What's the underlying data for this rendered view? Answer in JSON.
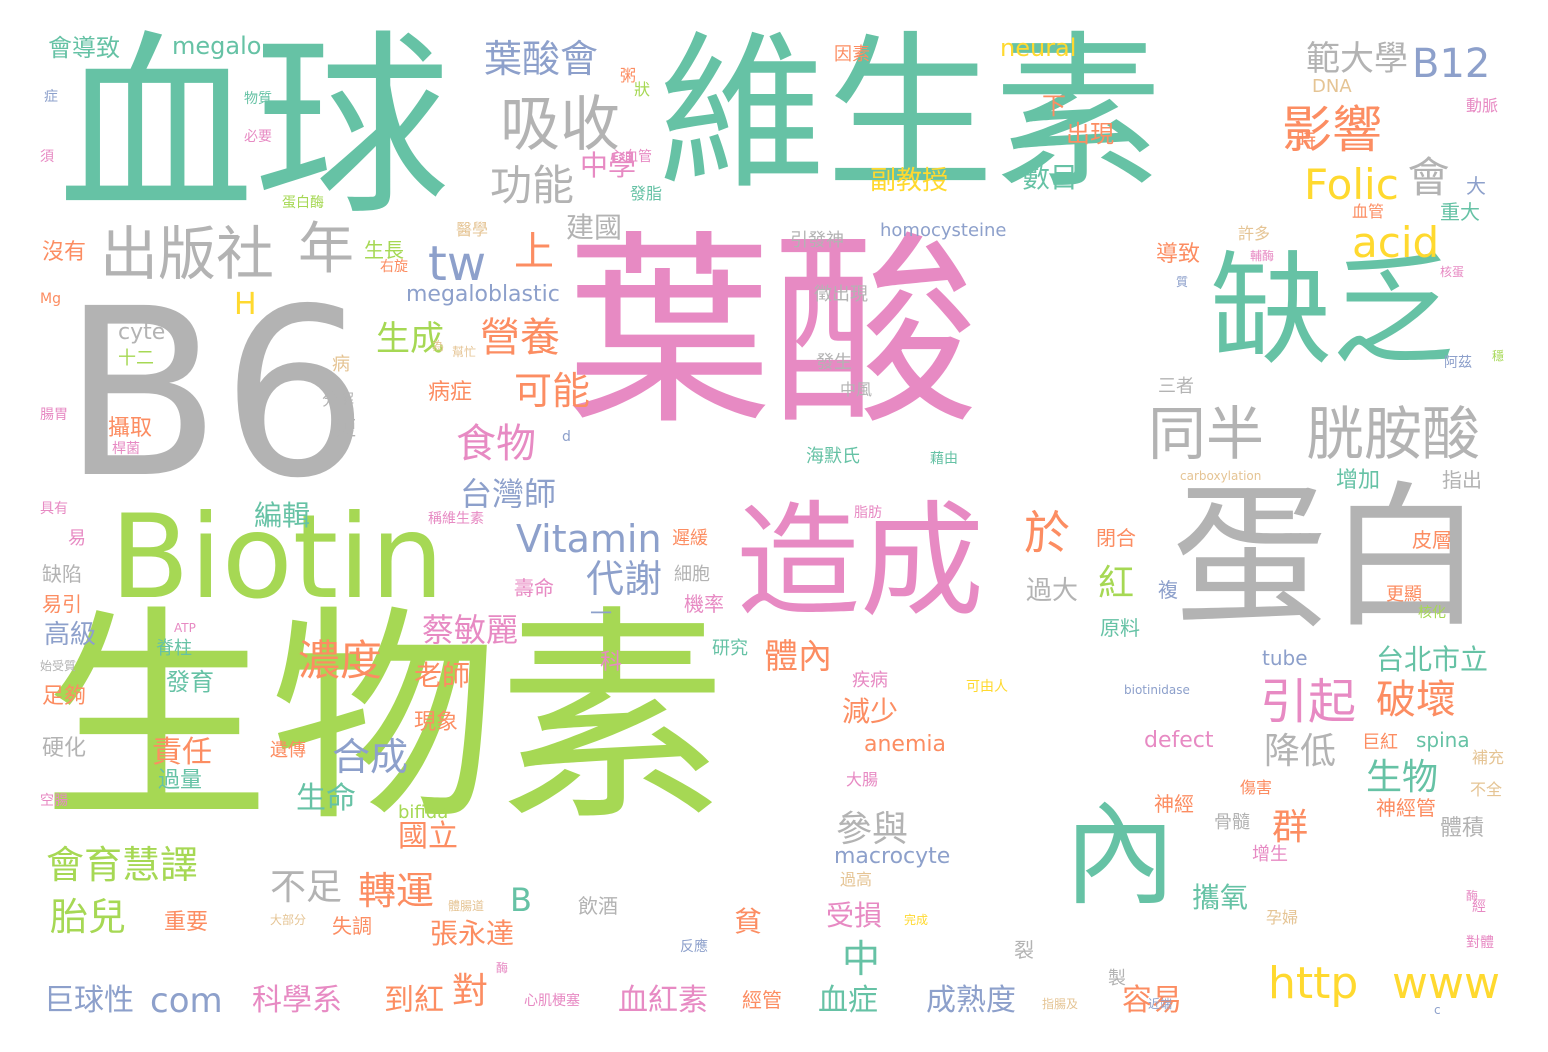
{
  "colors": {
    "teal": "#66c2a5",
    "green": "#a6d854",
    "pink": "#e78ac3",
    "gray": "#b3b3b3",
    "orange": "#fc8d62",
    "blue": "#8da0cb",
    "yellow": "#ffd92f",
    "tan": "#e5c494"
  },
  "words": [
    {
      "text": "生物素",
      "color": "green"
    },
    {
      "text": "葉酸",
      "color": "pink"
    },
    {
      "text": "維生素",
      "color": "teal"
    },
    {
      "text": "血球",
      "color": "teal"
    },
    {
      "text": "B6",
      "color": "gray"
    },
    {
      "text": "Biotin",
      "color": "green"
    },
    {
      "text": "缺乏",
      "color": "teal"
    },
    {
      "text": "蛋白",
      "color": "gray"
    },
    {
      "text": "造成",
      "color": "pink"
    },
    {
      "text": "內",
      "color": "teal"
    },
    {
      "text": "吸收",
      "color": "gray"
    },
    {
      "text": "出版社",
      "color": "gray"
    },
    {
      "text": "年",
      "color": "gray"
    },
    {
      "text": "同半",
      "color": "gray"
    },
    {
      "text": "胱胺酸",
      "color": "gray"
    },
    {
      "text": "葉酸會",
      "color": "blue"
    },
    {
      "text": "影響",
      "color": "orange"
    },
    {
      "text": "功能",
      "color": "gray"
    },
    {
      "text": "tw",
      "color": "blue"
    },
    {
      "text": "上",
      "color": "orange"
    },
    {
      "text": "Folic",
      "color": "yellow"
    },
    {
      "text": "acid",
      "color": "yellow"
    },
    {
      "text": "會",
      "color": "gray"
    },
    {
      "text": "範大學",
      "color": "gray"
    },
    {
      "text": "B12",
      "color": "blue"
    },
    {
      "text": "營養",
      "color": "orange"
    },
    {
      "text": "生成",
      "color": "green"
    },
    {
      "text": "可能",
      "color": "orange"
    },
    {
      "text": "食物",
      "color": "pink"
    },
    {
      "text": "台灣師",
      "color": "blue"
    },
    {
      "text": "於",
      "color": "orange"
    },
    {
      "text": "紅",
      "color": "green"
    },
    {
      "text": "Vitamin",
      "color": "blue"
    },
    {
      "text": "代謝",
      "color": "blue"
    },
    {
      "text": "濃度",
      "color": "orange"
    },
    {
      "text": "引起",
      "color": "pink"
    },
    {
      "text": "破壞",
      "color": "orange"
    },
    {
      "text": "體內",
      "color": "orange"
    },
    {
      "text": "合成",
      "color": "blue"
    },
    {
      "text": "降低",
      "color": "gray"
    },
    {
      "text": "生物",
      "color": "teal"
    },
    {
      "text": "台北市立",
      "color": "teal"
    },
    {
      "text": "蔡敏麗",
      "color": "pink"
    },
    {
      "text": "高級",
      "color": "blue"
    },
    {
      "text": "老師",
      "color": "orange"
    },
    {
      "text": "責任",
      "color": "orange"
    },
    {
      "text": "生命",
      "color": "teal"
    },
    {
      "text": "會育慧譯",
      "color": "green"
    },
    {
      "text": "胎兒",
      "color": "green"
    },
    {
      "text": "不足",
      "color": "gray"
    },
    {
      "text": "轉運",
      "color": "orange"
    },
    {
      "text": "參與",
      "color": "gray"
    },
    {
      "text": "國立",
      "color": "orange"
    },
    {
      "text": "群",
      "color": "orange"
    },
    {
      "text": "中",
      "color": "teal"
    },
    {
      "text": "http",
      "color": "yellow"
    },
    {
      "text": "www",
      "color": "yellow"
    },
    {
      "text": "com",
      "color": "blue"
    },
    {
      "text": "巨球性",
      "color": "blue"
    },
    {
      "text": "科學系",
      "color": "pink"
    },
    {
      "text": "到紅",
      "color": "orange"
    },
    {
      "text": "對",
      "color": "orange"
    },
    {
      "text": "血紅素",
      "color": "pink"
    },
    {
      "text": "血症",
      "color": "teal"
    },
    {
      "text": "成熟度",
      "color": "blue"
    },
    {
      "text": "容易",
      "color": "orange"
    },
    {
      "text": "攜氧",
      "color": "teal"
    },
    {
      "text": "張永達",
      "color": "orange"
    },
    {
      "text": "B",
      "color": "teal"
    },
    {
      "text": "減少",
      "color": "orange"
    },
    {
      "text": "anemia",
      "color": "orange"
    },
    {
      "text": "macrocyte",
      "color": "blue"
    },
    {
      "text": "受損",
      "color": "pink"
    },
    {
      "text": "中學",
      "color": "pink"
    },
    {
      "text": "建國",
      "color": "gray"
    },
    {
      "text": "副教授",
      "color": "yellow"
    },
    {
      "text": "數目",
      "color": "teal"
    },
    {
      "text": "出現",
      "color": "orange"
    },
    {
      "text": "下",
      "color": "orange"
    },
    {
      "text": "neural",
      "color": "yellow"
    },
    {
      "text": "megalo",
      "color": "teal"
    },
    {
      "text": "會導致",
      "color": "teal"
    },
    {
      "text": "megaloblastic",
      "color": "blue"
    },
    {
      "text": "H",
      "color": "yellow"
    },
    {
      "text": "cyte",
      "color": "gray"
    },
    {
      "text": "十二",
      "color": "green"
    },
    {
      "text": "生長",
      "color": "green"
    },
    {
      "text": "沒有",
      "color": "orange"
    },
    {
      "text": "攝取",
      "color": "orange"
    },
    {
      "text": "編輯",
      "color": "teal"
    },
    {
      "text": "病症",
      "color": "orange"
    },
    {
      "text": "病",
      "color": "tan"
    },
    {
      "text": "分解",
      "color": "gray"
    },
    {
      "text": "短",
      "color": "gray"
    },
    {
      "text": "現象",
      "color": "orange"
    },
    {
      "text": "過量",
      "color": "teal"
    },
    {
      "text": "遺傳",
      "color": "orange"
    },
    {
      "text": "硬化",
      "color": "gray"
    },
    {
      "text": "足夠",
      "color": "orange"
    },
    {
      "text": "發育",
      "color": "teal"
    },
    {
      "text": "脊柱",
      "color": "teal"
    },
    {
      "text": "缺陷",
      "color": "gray"
    },
    {
      "text": "易引",
      "color": "orange"
    },
    {
      "text": "重要",
      "color": "orange"
    },
    {
      "text": "失調",
      "color": "orange"
    },
    {
      "text": "貧",
      "color": "orange"
    },
    {
      "text": "飲酒",
      "color": "gray"
    },
    {
      "text": "經管",
      "color": "orange"
    },
    {
      "text": "DNA",
      "color": "tan"
    },
    {
      "text": "homocysteine",
      "color": "blue"
    },
    {
      "text": "引發神",
      "color": "gray"
    },
    {
      "text": "徵出現",
      "color": "gray"
    },
    {
      "text": "發生",
      "color": "gray"
    },
    {
      "text": "中風",
      "color": "gray"
    },
    {
      "text": "三者",
      "color": "gray"
    },
    {
      "text": "海默氏",
      "color": "teal"
    },
    {
      "text": "閉合",
      "color": "orange"
    },
    {
      "text": "遲緩",
      "color": "orange"
    },
    {
      "text": "細胞",
      "color": "gray"
    },
    {
      "text": "壽命",
      "color": "pink"
    },
    {
      "text": "機率",
      "color": "pink"
    },
    {
      "text": "過大",
      "color": "gray"
    },
    {
      "text": "原料",
      "color": "teal"
    },
    {
      "text": "研究",
      "color": "teal"
    },
    {
      "text": "疾病",
      "color": "pink"
    },
    {
      "text": "科",
      "color": "pink"
    },
    {
      "text": "tube",
      "color": "blue"
    },
    {
      "text": "defect",
      "color": "pink"
    },
    {
      "text": "spina",
      "color": "teal"
    },
    {
      "text": "bifida",
      "color": "green"
    },
    {
      "text": "巨紅",
      "color": "orange"
    },
    {
      "text": "神經管",
      "color": "orange"
    },
    {
      "text": "神經",
      "color": "orange"
    },
    {
      "text": "骨髓",
      "color": "gray"
    },
    {
      "text": "體積",
      "color": "gray"
    },
    {
      "text": "增生",
      "color": "pink"
    },
    {
      "text": "孕婦",
      "color": "tan"
    },
    {
      "text": "過高",
      "color": "tan"
    },
    {
      "text": "大腸",
      "color": "pink"
    },
    {
      "text": "傷害",
      "color": "orange"
    },
    {
      "text": "不全",
      "color": "tan"
    },
    {
      "text": "補充",
      "color": "tan"
    },
    {
      "text": "皮層",
      "color": "orange"
    },
    {
      "text": "更顯",
      "color": "orange"
    },
    {
      "text": "增加",
      "color": "teal"
    },
    {
      "text": "指出",
      "color": "gray"
    },
    {
      "text": "許多",
      "color": "tan"
    },
    {
      "text": "導致",
      "color": "orange"
    },
    {
      "text": "時",
      "color": "orange"
    },
    {
      "text": "大",
      "color": "blue"
    },
    {
      "text": "重大",
      "color": "teal"
    },
    {
      "text": "血管",
      "color": "orange"
    },
    {
      "text": "動脈",
      "color": "pink"
    },
    {
      "text": "因素",
      "color": "orange"
    },
    {
      "text": "粥",
      "color": "orange"
    },
    {
      "text": "狀",
      "color": "green"
    },
    {
      "text": "症",
      "color": "blue"
    },
    {
      "text": "物質",
      "color": "teal"
    },
    {
      "text": "必要",
      "color": "pink"
    },
    {
      "text": "須",
      "color": "pink"
    },
    {
      "text": "心血管",
      "color": "pink"
    },
    {
      "text": "發脂",
      "color": "teal"
    },
    {
      "text": "蛋白酶",
      "color": "green"
    },
    {
      "text": "醫學",
      "color": "tan"
    },
    {
      "text": "右旋",
      "color": "orange"
    },
    {
      "text": "Mg",
      "color": "orange"
    },
    {
      "text": "為",
      "color": "tan"
    },
    {
      "text": "幫忙",
      "color": "tan"
    },
    {
      "text": "腸胃",
      "color": "pink"
    },
    {
      "text": "d",
      "color": "blue"
    },
    {
      "text": "桿菌",
      "color": "pink"
    },
    {
      "text": "具有",
      "color": "pink"
    },
    {
      "text": "易",
      "color": "pink"
    },
    {
      "text": "稱維生素",
      "color": "pink"
    },
    {
      "text": "脂肪",
      "color": "pink"
    },
    {
      "text": "藉由",
      "color": "teal"
    },
    {
      "text": "carboxylation",
      "color": "tan"
    },
    {
      "text": "ATP",
      "color": "pink"
    },
    {
      "text": "始受質",
      "color": "gray"
    },
    {
      "text": "可由人",
      "color": "yellow"
    },
    {
      "text": "biotinidase",
      "color": "blue"
    },
    {
      "text": "空腸",
      "color": "pink"
    },
    {
      "text": "核化",
      "color": "green"
    },
    {
      "text": "複",
      "color": "blue"
    },
    {
      "text": "體腸道",
      "color": "tan"
    },
    {
      "text": "大部分",
      "color": "tan"
    },
    {
      "text": "完成",
      "color": "yellow"
    },
    {
      "text": "反應",
      "color": "blue"
    },
    {
      "text": "酶",
      "color": "pink"
    },
    {
      "text": "心肌梗塞",
      "color": "pink"
    },
    {
      "text": "裂",
      "color": "gray"
    },
    {
      "text": "製",
      "color": "gray"
    },
    {
      "text": "指腸及",
      "color": "tan"
    },
    {
      "text": "近端",
      "color": "blue"
    },
    {
      "text": "c",
      "color": "blue"
    },
    {
      "text": "對體",
      "color": "pink"
    },
    {
      "text": "經",
      "color": "pink"
    },
    {
      "text": "酶",
      "color": "pink"
    },
    {
      "text": "阿茲",
      "color": "blue"
    },
    {
      "text": "穩",
      "color": "green"
    },
    {
      "text": "核蛋",
      "color": "pink"
    },
    {
      "text": "輔酶",
      "color": "pink"
    },
    {
      "text": "質",
      "color": "blue"
    },
    {
      "text": "一",
      "color": "blue"
    }
  ]
}
